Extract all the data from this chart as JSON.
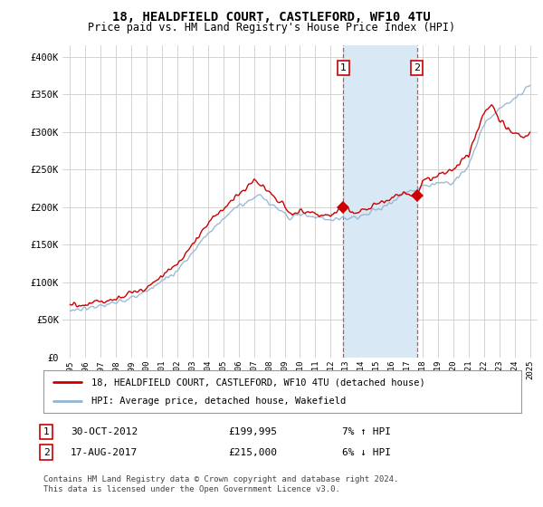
{
  "title": "18, HEALDFIELD COURT, CASTLEFORD, WF10 4TU",
  "subtitle": "Price paid vs. HM Land Registry's House Price Index (HPI)",
  "ylabel_ticks": [
    "£0",
    "£50K",
    "£100K",
    "£150K",
    "£200K",
    "£250K",
    "£300K",
    "£350K",
    "£400K"
  ],
  "ytick_values": [
    0,
    50000,
    100000,
    150000,
    200000,
    250000,
    300000,
    350000,
    400000
  ],
  "ylim": [
    0,
    415000
  ],
  "xlim_start": 1994.5,
  "xlim_end": 2025.5,
  "background_color": "#ffffff",
  "plot_bg_color": "#ffffff",
  "grid_color": "#cccccc",
  "red_line_color": "#cc0000",
  "blue_line_color": "#92b4d0",
  "shade_color": "#d8e8f5",
  "marker1_x": 2012.83,
  "marker1_y": 199995,
  "marker2_x": 2017.63,
  "marker2_y": 215000,
  "marker1_label": "1",
  "marker2_label": "2",
  "legend_entry1": "18, HEALDFIELD COURT, CASTLEFORD, WF10 4TU (detached house)",
  "legend_entry2": "HPI: Average price, detached house, Wakefield",
  "table_row1": [
    "1",
    "30-OCT-2012",
    "£199,995",
    "7% ↑ HPI"
  ],
  "table_row2": [
    "2",
    "17-AUG-2017",
    "£215,000",
    "6% ↓ HPI"
  ],
  "footnote": "Contains HM Land Registry data © Crown copyright and database right 2024.\nThis data is licensed under the Open Government Licence v3.0.",
  "xtick_years": [
    1995,
    1996,
    1997,
    1998,
    1999,
    2000,
    2001,
    2002,
    2003,
    2004,
    2005,
    2006,
    2007,
    2008,
    2009,
    2010,
    2011,
    2012,
    2013,
    2014,
    2015,
    2016,
    2017,
    2018,
    2019,
    2020,
    2021,
    2022,
    2023,
    2024,
    2025
  ]
}
